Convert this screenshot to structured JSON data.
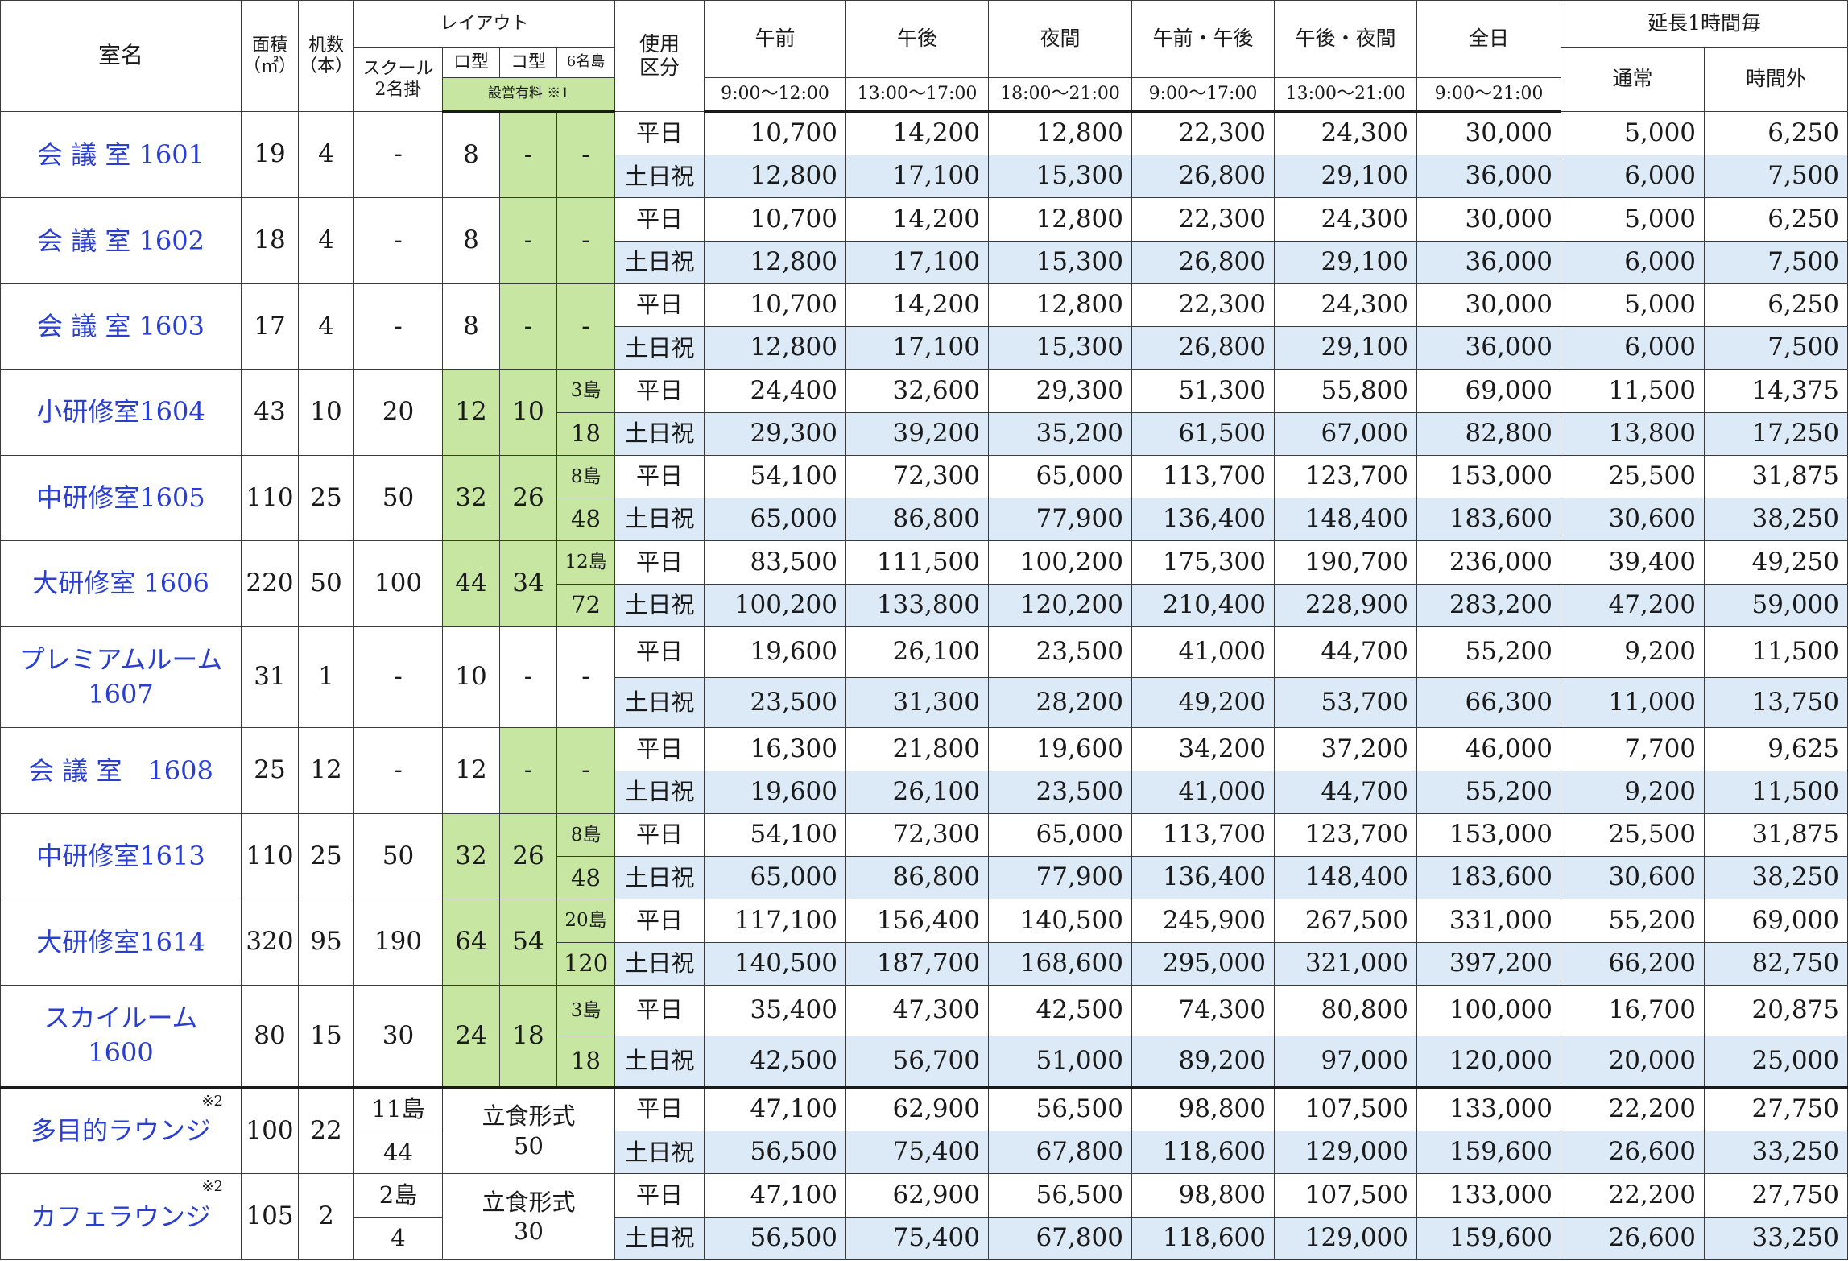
{
  "headers": {
    "room": "室名",
    "area": "面積",
    "area_unit": "（㎡）",
    "desks": "机数",
    "desks_unit": "（本）",
    "layout": "レイアウト",
    "school_1": "スクール",
    "school_2": "2名掛",
    "ro_type": "ロ型",
    "ko_type": "コ型",
    "island_6": "6名島",
    "setup_fee": "設営有料 ※1",
    "usage_1": "使用",
    "usage_2": "区分",
    "extension": "延長1時間毎",
    "periods": [
      {
        "name": "午前",
        "time": "9:00～12:00"
      },
      {
        "name": "午後",
        "time": "13:00～17:00"
      },
      {
        "name": "夜間",
        "time": "18:00～21:00"
      },
      {
        "name": "午前・午後",
        "time": "9:00～17:00"
      },
      {
        "name": "午後・夜間",
        "time": "13:00～21:00"
      },
      {
        "name": "全日",
        "time": "9:00～21:00"
      }
    ],
    "ext_normal": "通常",
    "ext_overtime": "時間外"
  },
  "day_types": {
    "weekday": "平日",
    "weekend": "土日祝"
  },
  "stand_label": "立食形式",
  "rooms": [
    {
      "name": [
        "会 議 室 1601"
      ],
      "area": "19",
      "desks": "4",
      "school": "-",
      "ro": "8",
      "ko": "-",
      "island": "-",
      "green": [
        "ko",
        "island"
      ],
      "weekday": [
        "10,700",
        "14,200",
        "12,800",
        "22,300",
        "24,300",
        "30,000",
        "5,000",
        "6,250"
      ],
      "weekend": [
        "12,800",
        "17,100",
        "15,300",
        "26,800",
        "29,100",
        "36,000",
        "6,000",
        "7,500"
      ]
    },
    {
      "name": [
        "会 議 室 1602"
      ],
      "area": "18",
      "desks": "4",
      "school": "-",
      "ro": "8",
      "ko": "-",
      "island": "-",
      "green": [
        "ko",
        "island"
      ],
      "weekday": [
        "10,700",
        "14,200",
        "12,800",
        "22,300",
        "24,300",
        "30,000",
        "5,000",
        "6,250"
      ],
      "weekend": [
        "12,800",
        "17,100",
        "15,300",
        "26,800",
        "29,100",
        "36,000",
        "6,000",
        "7,500"
      ]
    },
    {
      "name": [
        "会 議 室 1603"
      ],
      "area": "17",
      "desks": "4",
      "school": "-",
      "ro": "8",
      "ko": "-",
      "island": "-",
      "green": [
        "ko",
        "island"
      ],
      "weekday": [
        "10,700",
        "14,200",
        "12,800",
        "22,300",
        "24,300",
        "30,000",
        "5,000",
        "6,250"
      ],
      "weekend": [
        "12,800",
        "17,100",
        "15,300",
        "26,800",
        "29,100",
        "36,000",
        "6,000",
        "7,500"
      ]
    },
    {
      "name": [
        "小研修室1604"
      ],
      "area": "43",
      "desks": "10",
      "school": "20",
      "ro": "12",
      "ko": "10",
      "islands": "3島",
      "island_cap": "18",
      "green": [
        "ro",
        "ko",
        "island"
      ],
      "weekday": [
        "24,400",
        "32,600",
        "29,300",
        "51,300",
        "55,800",
        "69,000",
        "11,500",
        "14,375"
      ],
      "weekend": [
        "29,300",
        "39,200",
        "35,200",
        "61,500",
        "67,000",
        "82,800",
        "13,800",
        "17,250"
      ]
    },
    {
      "name": [
        "中研修室1605"
      ],
      "area": "110",
      "desks": "25",
      "school": "50",
      "ro": "32",
      "ko": "26",
      "islands": "8島",
      "island_cap": "48",
      "green": [
        "ro",
        "ko",
        "island"
      ],
      "weekday": [
        "54,100",
        "72,300",
        "65,000",
        "113,700",
        "123,700",
        "153,000",
        "25,500",
        "31,875"
      ],
      "weekend": [
        "65,000",
        "86,800",
        "77,900",
        "136,400",
        "148,400",
        "183,600",
        "30,600",
        "38,250"
      ]
    },
    {
      "name": [
        "大研修室 1606"
      ],
      "area": "220",
      "desks": "50",
      "school": "100",
      "ro": "44",
      "ko": "34",
      "islands": "12島",
      "island_cap": "72",
      "green": [
        "ro",
        "ko",
        "island"
      ],
      "weekday": [
        "83,500",
        "111,500",
        "100,200",
        "175,300",
        "190,700",
        "236,000",
        "39,400",
        "49,250"
      ],
      "weekend": [
        "100,200",
        "133,800",
        "120,200",
        "210,400",
        "228,900",
        "283,200",
        "47,200",
        "59,000"
      ]
    },
    {
      "name": [
        "プレミアムルーム",
        "1607"
      ],
      "area": "31",
      "desks": "1",
      "school": "-",
      "ro": "10",
      "ko": "-",
      "island": "-",
      "green": [],
      "weekday": [
        "19,600",
        "26,100",
        "23,500",
        "41,000",
        "44,700",
        "55,200",
        "9,200",
        "11,500"
      ],
      "weekend": [
        "23,500",
        "31,300",
        "28,200",
        "49,200",
        "53,700",
        "66,300",
        "11,000",
        "13,750"
      ]
    },
    {
      "name": [
        "会 議 室　1608"
      ],
      "area": "25",
      "desks": "12",
      "school": "-",
      "ro": "12",
      "ko": "-",
      "island": "-",
      "green": [
        "ko",
        "island"
      ],
      "weekday": [
        "16,300",
        "21,800",
        "19,600",
        "34,200",
        "37,200",
        "46,000",
        "7,700",
        "9,625"
      ],
      "weekend": [
        "19,600",
        "26,100",
        "23,500",
        "41,000",
        "44,700",
        "55,200",
        "9,200",
        "11,500"
      ]
    },
    {
      "name": [
        "中研修室1613"
      ],
      "area": "110",
      "desks": "25",
      "school": "50",
      "ro": "32",
      "ko": "26",
      "islands": "8島",
      "island_cap": "48",
      "green": [
        "ro",
        "ko",
        "island"
      ],
      "weekday": [
        "54,100",
        "72,300",
        "65,000",
        "113,700",
        "123,700",
        "153,000",
        "25,500",
        "31,875"
      ],
      "weekend": [
        "65,000",
        "86,800",
        "77,900",
        "136,400",
        "148,400",
        "183,600",
        "30,600",
        "38,250"
      ]
    },
    {
      "name": [
        "大研修室1614"
      ],
      "area": "320",
      "desks": "95",
      "school": "190",
      "ro": "64",
      "ko": "54",
      "islands": "20島",
      "island_cap": "120",
      "green": [
        "ro",
        "ko",
        "island"
      ],
      "weekday": [
        "117,100",
        "156,400",
        "140,500",
        "245,900",
        "267,500",
        "331,000",
        "55,200",
        "69,000"
      ],
      "weekend": [
        "140,500",
        "187,700",
        "168,600",
        "295,000",
        "321,000",
        "397,200",
        "66,200",
        "82,750"
      ]
    },
    {
      "name": [
        "スカイルーム",
        "1600"
      ],
      "area": "80",
      "desks": "15",
      "school": "30",
      "ro": "24",
      "ko": "18",
      "islands": "3島",
      "island_cap": "18",
      "green": [
        "ro",
        "ko",
        "island"
      ],
      "weekday": [
        "35,400",
        "47,300",
        "42,500",
        "74,300",
        "80,800",
        "100,000",
        "16,700",
        "20,875"
      ],
      "weekend": [
        "42,500",
        "56,700",
        "51,000",
        "89,200",
        "97,000",
        "120,000",
        "20,000",
        "25,000"
      ]
    }
  ],
  "lounges": [
    {
      "name": "多目的ラウンジ",
      "note": "※2",
      "area": "100",
      "desks": "22",
      "islands": "11島",
      "island_cap": "44",
      "stand_cap": "50",
      "weekday": [
        "47,100",
        "62,900",
        "56,500",
        "98,800",
        "107,500",
        "133,000",
        "22,200",
        "27,750"
      ],
      "weekend": [
        "56,500",
        "75,400",
        "67,800",
        "118,600",
        "129,000",
        "159,600",
        "26,600",
        "33,250"
      ]
    },
    {
      "name": "カフェラウンジ",
      "note": "※2",
      "area": "105",
      "desks": "2",
      "islands": "2島",
      "island_cap": "4",
      "stand_cap": "30",
      "weekday": [
        "47,100",
        "62,900",
        "56,500",
        "98,800",
        "107,500",
        "133,000",
        "22,200",
        "27,750"
      ],
      "weekend": [
        "56,500",
        "75,400",
        "67,800",
        "118,600",
        "129,000",
        "159,600",
        "26,600",
        "33,250"
      ]
    }
  ],
  "colors": {
    "setup_green": "#c6e6a1",
    "weekend_blue": "#dce9f6",
    "room_link": "#2a3fd0"
  }
}
